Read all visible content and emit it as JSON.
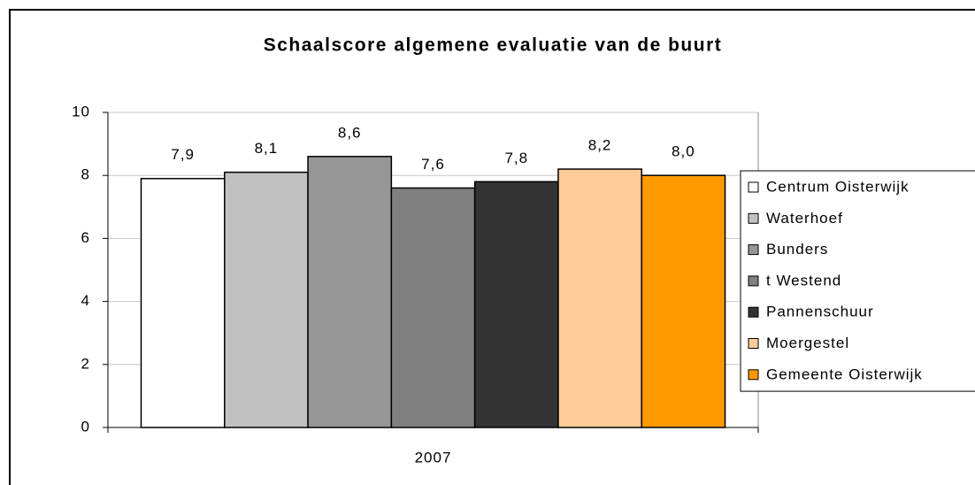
{
  "chart_data": {
    "type": "bar",
    "title": "Schaalscore algemene evaluatie van de buurt",
    "categories": [
      "2007"
    ],
    "series": [
      {
        "name": "Centrum Oisterwijk",
        "color": "#ffffff",
        "values": [
          7.9
        ],
        "value_labels": [
          "7,9"
        ]
      },
      {
        "name": "Waterhoef",
        "color": "#c0c0c0",
        "values": [
          8.1
        ],
        "value_labels": [
          "8,1"
        ]
      },
      {
        "name": "Bunders",
        "color": "#969696",
        "values": [
          8.6
        ],
        "value_labels": [
          "8,6"
        ]
      },
      {
        "name": "t Westend",
        "color": "#808080",
        "values": [
          7.6
        ],
        "value_labels": [
          "7,6"
        ]
      },
      {
        "name": "Pannenschuur",
        "color": "#333333",
        "values": [
          7.8
        ],
        "value_labels": [
          "7,8"
        ]
      },
      {
        "name": "Moergestel",
        "color": "#ffcc99",
        "values": [
          8.2
        ],
        "value_labels": [
          "8,2"
        ]
      },
      {
        "name": "Gemeente Oisterwijk",
        "color": "#ff9900",
        "values": [
          8.0
        ],
        "value_labels": [
          "8,0"
        ]
      }
    ],
    "ylim": [
      0,
      10
    ],
    "yticks": [
      0,
      2,
      4,
      6,
      8,
      10
    ],
    "grid": true,
    "legend": "right"
  }
}
